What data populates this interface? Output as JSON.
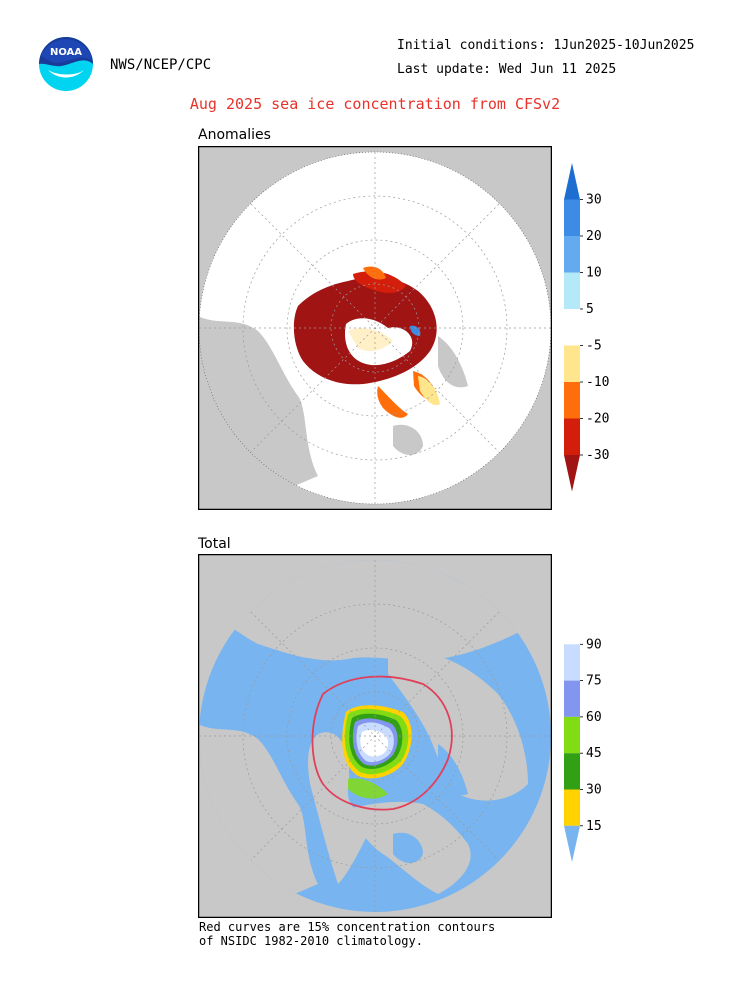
{
  "header": {
    "agency": "NWS/NCEP/CPC",
    "initial_conditions": "Initial conditions: 1Jun2025-10Jun2025",
    "last_update": "Last update: Wed Jun 11 2025",
    "title": "Aug 2025 sea ice concentration from CFSv2",
    "logo_text": "NOAA"
  },
  "panels": {
    "anomalies_label": "Anomalies",
    "total_label": "Total"
  },
  "footer": {
    "line1": "Red curves are 15% concentration contours",
    "line2": "of NSIDC 1982-2010 climatology."
  },
  "colors": {
    "land": "#c8c8c8",
    "ocean_total": "#78b4f0",
    "climatology_contour": "#e0405a"
  },
  "chart_data": [
    {
      "type": "heatmap",
      "title": "Anomalies",
      "colorbar": {
        "tick_labels": [
          "30",
          "20",
          "10",
          "5",
          "-5",
          "-10",
          "-20",
          "-30"
        ],
        "bins": [
          {
            "range": "> 30",
            "color": "#1e6ed2"
          },
          {
            "range": "20 to 30",
            "color": "#3c8ce6"
          },
          {
            "range": "10 to 20",
            "color": "#64aaf0"
          },
          {
            "range": "5 to 10",
            "color": "#b4eaf8"
          },
          {
            "range": "-5 to 5",
            "color": "#ffffff"
          },
          {
            "range": "-10 to -5",
            "color": "#ffe68c"
          },
          {
            "range": "-20 to -10",
            "color": "#ff6e0a"
          },
          {
            "range": "-30 to -20",
            "color": "#d21e0a"
          },
          {
            "range": "< -30",
            "color": "#a01414"
          }
        ]
      }
    },
    {
      "type": "heatmap",
      "title": "Total",
      "colorbar": {
        "tick_labels": [
          "90",
          "75",
          "60",
          "45",
          "30",
          "15"
        ],
        "bins": [
          {
            "range": "> 90",
            "color": "#ffffff"
          },
          {
            "range": "75 to 90",
            "color": "#c8dcff"
          },
          {
            "range": "60 to 75",
            "color": "#8296f0"
          },
          {
            "range": "45 to 60",
            "color": "#82dc14"
          },
          {
            "range": "30 to 45",
            "color": "#32a014"
          },
          {
            "range": "15 to 30",
            "color": "#ffd200"
          },
          {
            "range": "< 15",
            "color": "#78b4f0"
          }
        ]
      }
    }
  ]
}
